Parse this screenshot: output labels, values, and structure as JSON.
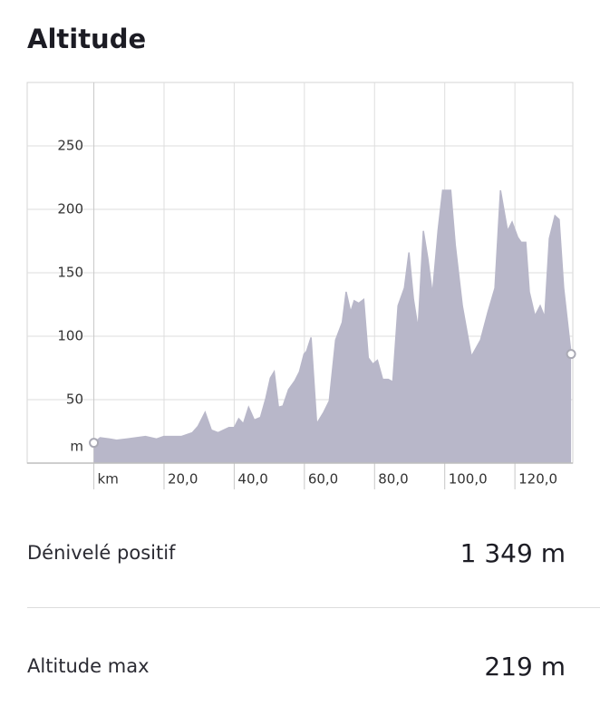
{
  "header": {
    "title": "Altitude"
  },
  "chart_data": {
    "type": "area",
    "x": [
      0,
      1.8,
      4.4,
      6.5,
      9.5,
      12.1,
      14.7,
      17.8,
      19.9,
      25,
      28.1,
      29.7,
      31.7,
      33.5,
      35.4,
      38.5,
      40,
      41.3,
      42.6,
      44.1,
      45.7,
      47.5,
      49,
      50.3,
      51.4,
      52.6,
      53.9,
      55.5,
      57.3,
      58.6,
      59.9,
      60.6,
      61.9,
      63.5,
      65.5,
      67.1,
      68.9,
      70.8,
      71.9,
      73.2,
      74.2,
      75.5,
      76.9,
      78.2,
      79.5,
      80.8,
      82.3,
      83.9,
      85.2,
      86.7,
      88.5,
      89.8,
      91.1,
      92.4,
      93.9,
      95.2,
      96.5,
      98.1,
      99.4,
      101.7,
      103,
      105,
      107.6,
      110.2,
      112.3,
      114.3,
      115.9,
      117.9,
      119.2,
      120.8,
      121.8,
      123.1,
      124.1,
      125.7,
      127.2,
      128.5,
      129.8,
      131.4,
      132.6,
      133.9,
      136
    ],
    "values": [
      16,
      20,
      19,
      18,
      19,
      20,
      21,
      19,
      21,
      21,
      24,
      29,
      40,
      26,
      24,
      28,
      28,
      35,
      31,
      44,
      34,
      36,
      51,
      67,
      72,
      44,
      45,
      58,
      65,
      72,
      86,
      88,
      99,
      31,
      40,
      49,
      97,
      111,
      135,
      119,
      128,
      126,
      129,
      83,
      78,
      81,
      66,
      66,
      64,
      124,
      138,
      166,
      129,
      106,
      183,
      161,
      133,
      183,
      215,
      215,
      172,
      124,
      84,
      97,
      119,
      138,
      215,
      183,
      190,
      178,
      174,
      174,
      135,
      116,
      124,
      115,
      177,
      195,
      192,
      138,
      86
    ],
    "color": "#b8b7c9",
    "xlim": [
      -19,
      136.5
    ],
    "ylim": [
      0,
      300
    ],
    "xticks": [
      {
        "value": 0,
        "label": "km"
      },
      {
        "value": 20,
        "label": "20,0"
      },
      {
        "value": 40,
        "label": "40,0"
      },
      {
        "value": 60,
        "label": "60,0"
      },
      {
        "value": 80,
        "label": "80,0"
      },
      {
        "value": 100,
        "label": "100,0"
      },
      {
        "value": 120,
        "label": "120,0"
      }
    ],
    "yticks": [
      50,
      100,
      150,
      200,
      250
    ],
    "y_unit": "m",
    "grid": true
  },
  "stats": [
    {
      "label": "Dénivelé positif",
      "value": "1 349 m"
    },
    {
      "label": "Altitude max",
      "value": "219 m"
    }
  ]
}
